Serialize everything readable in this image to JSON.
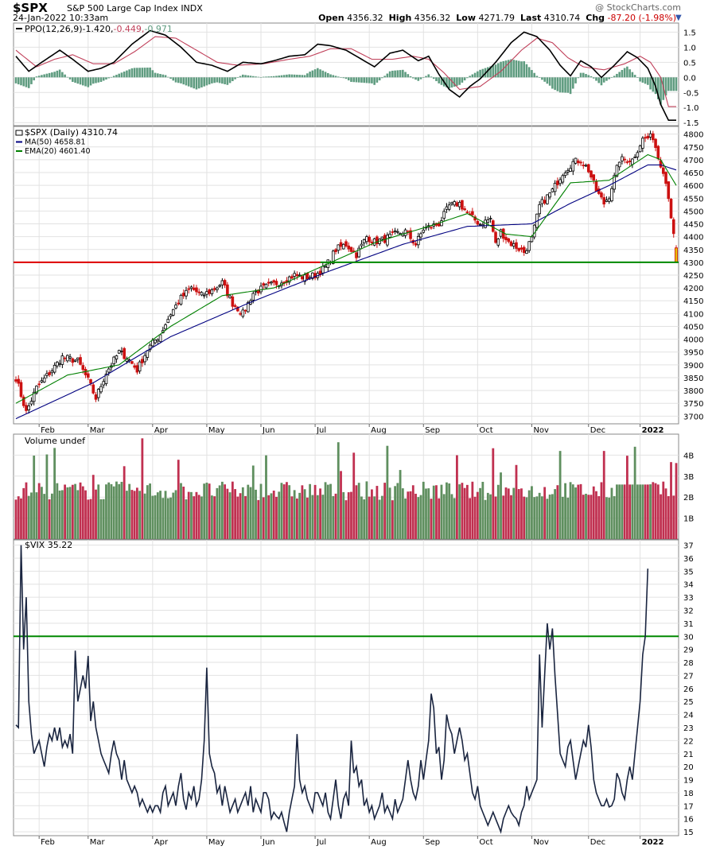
{
  "header": {
    "ticker": "$SPX",
    "name": "S&P 500 Large Cap Index",
    "exchange": "INDX",
    "datetime": "24-Jan-2022 10:33am",
    "brand": "@ StockCharts.com",
    "open_label": "Open",
    "open": "4356.32",
    "high_label": "High",
    "high": "4356.32",
    "low_label": "Low",
    "low": "4271.79",
    "last_label": "Last",
    "last": "4310.74",
    "chg_label": "Chg",
    "chg": "-87.20 (-1.98%)"
  },
  "chart_data": [
    {
      "type": "line",
      "panel": "ppo",
      "legend": {
        "name": "PPO(12,26,9)",
        "v1": "-1.420",
        "v2": "-0.449",
        "v3": "-0.971"
      },
      "ylim": [
        -1.6,
        1.8
      ],
      "yticks": [
        "1.5",
        "1.0",
        "0.5",
        "0.0",
        "-0.5",
        "-1.0",
        "-1.5"
      ],
      "ppo_anchors": [
        [
          0,
          0.7
        ],
        [
          5,
          0.2
        ],
        [
          10,
          0.5
        ],
        [
          17,
          0.9
        ],
        [
          22,
          0.6
        ],
        [
          28,
          0.2
        ],
        [
          33,
          0.3
        ],
        [
          38,
          0.5
        ],
        [
          45,
          1.1
        ],
        [
          52,
          1.55
        ],
        [
          58,
          1.4
        ],
        [
          64,
          1.0
        ],
        [
          70,
          0.5
        ],
        [
          76,
          0.4
        ],
        [
          82,
          0.2
        ],
        [
          88,
          0.5
        ],
        [
          95,
          0.45
        ],
        [
          100,
          0.55
        ],
        [
          106,
          0.7
        ],
        [
          112,
          0.75
        ],
        [
          117,
          1.1
        ],
        [
          122,
          1.05
        ],
        [
          128,
          0.9
        ],
        [
          134,
          0.6
        ],
        [
          139,
          0.35
        ],
        [
          145,
          0.8
        ],
        [
          150,
          0.9
        ],
        [
          156,
          0.55
        ],
        [
          160,
          0.7
        ],
        [
          164,
          0.1
        ],
        [
          168,
          -0.4
        ],
        [
          172,
          -0.65
        ],
        [
          176,
          -0.3
        ],
        [
          180,
          -0.05
        ],
        [
          186,
          0.5
        ],
        [
          192,
          1.15
        ],
        [
          197,
          1.5
        ],
        [
          202,
          1.35
        ],
        [
          207,
          0.9
        ],
        [
          211,
          0.4
        ],
        [
          215,
          0.05
        ],
        [
          219,
          0.55
        ],
        [
          223,
          0.35
        ],
        [
          227,
          0.0
        ],
        [
          232,
          0.4
        ],
        [
          237,
          0.85
        ],
        [
          241,
          0.65
        ],
        [
          245,
          0.3
        ],
        [
          248,
          -0.3
        ],
        [
          250,
          -0.9
        ],
        [
          253,
          -1.42
        ]
      ],
      "signal_anchors": [
        [
          0,
          0.9
        ],
        [
          8,
          0.35
        ],
        [
          15,
          0.6
        ],
        [
          22,
          0.75
        ],
        [
          30,
          0.45
        ],
        [
          38,
          0.45
        ],
        [
          46,
          0.85
        ],
        [
          54,
          1.35
        ],
        [
          62,
          1.3
        ],
        [
          70,
          0.9
        ],
        [
          78,
          0.5
        ],
        [
          86,
          0.4
        ],
        [
          96,
          0.45
        ],
        [
          106,
          0.6
        ],
        [
          114,
          0.7
        ],
        [
          122,
          0.95
        ],
        [
          130,
          0.95
        ],
        [
          138,
          0.6
        ],
        [
          146,
          0.6
        ],
        [
          154,
          0.7
        ],
        [
          160,
          0.6
        ],
        [
          166,
          0.15
        ],
        [
          172,
          -0.4
        ],
        [
          180,
          -0.3
        ],
        [
          188,
          0.2
        ],
        [
          196,
          0.9
        ],
        [
          202,
          1.3
        ],
        [
          208,
          1.15
        ],
        [
          214,
          0.65
        ],
        [
          220,
          0.35
        ],
        [
          228,
          0.25
        ],
        [
          236,
          0.45
        ],
        [
          242,
          0.7
        ],
        [
          246,
          0.5
        ],
        [
          250,
          0.0
        ],
        [
          253,
          -0.97
        ]
      ],
      "colors": {
        "ppo": "#000000",
        "signal": "#c0405a",
        "histogram": "#5f9c80"
      }
    },
    {
      "type": "candlestick",
      "panel": "price",
      "legend": [
        {
          "label": "$SPX (Daily) 4310.74",
          "color": "#000000"
        },
        {
          "label": "MA(50) 4658.81",
          "color": "#000080"
        },
        {
          "label": "EMA(20) 4601.40",
          "color": "#008000"
        }
      ],
      "ylim": [
        3670,
        4830
      ],
      "yticks": [
        "4800",
        "4750",
        "4700",
        "4650",
        "4600",
        "4550",
        "4500",
        "4450",
        "4400",
        "4350",
        "4300",
        "4250",
        "4200",
        "4150",
        "4100",
        "4050",
        "4000",
        "3950",
        "3900",
        "3850",
        "3800",
        "3750",
        "3700"
      ],
      "xticks": [
        "Feb",
        "Mar",
        "Apr",
        "May",
        "Jun",
        "Jul",
        "Aug",
        "Sep",
        "Oct",
        "Nov",
        "Dec",
        "2022"
      ],
      "close_anchors": [
        [
          0,
          3850
        ],
        [
          4,
          3715
        ],
        [
          8,
          3810
        ],
        [
          14,
          3880
        ],
        [
          18,
          3930
        ],
        [
          24,
          3915
        ],
        [
          28,
          3840
        ],
        [
          31,
          3770
        ],
        [
          35,
          3870
        ],
        [
          40,
          3950
        ],
        [
          43,
          3930
        ],
        [
          47,
          3880
        ],
        [
          51,
          3960
        ],
        [
          56,
          4020
        ],
        [
          60,
          4100
        ],
        [
          64,
          4160
        ],
        [
          68,
          4200
        ],
        [
          72,
          4170
        ],
        [
          76,
          4190
        ],
        [
          80,
          4220
        ],
        [
          84,
          4140
        ],
        [
          86,
          4120
        ],
        [
          88,
          4100
        ],
        [
          92,
          4180
        ],
        [
          96,
          4200
        ],
        [
          100,
          4215
        ],
        [
          104,
          4230
        ],
        [
          108,
          4250
        ],
        [
          112,
          4240
        ],
        [
          116,
          4250
        ],
        [
          120,
          4280
        ],
        [
          124,
          4350
        ],
        [
          128,
          4370
        ],
        [
          132,
          4330
        ],
        [
          136,
          4400
        ],
        [
          139,
          4380
        ],
        [
          143,
          4390
        ],
        [
          147,
          4410
        ],
        [
          151,
          4420
        ],
        [
          155,
          4370
        ],
        [
          158,
          4430
        ],
        [
          164,
          4450
        ],
        [
          168,
          4520
        ],
        [
          172,
          4530
        ],
        [
          176,
          4480
        ],
        [
          180,
          4450
        ],
        [
          184,
          4470
        ],
        [
          186,
          4370
        ],
        [
          188,
          4420
        ],
        [
          191,
          4380
        ],
        [
          194,
          4360
        ],
        [
          197,
          4340
        ],
        [
          200,
          4390
        ],
        [
          203,
          4520
        ],
        [
          208,
          4580
        ],
        [
          212,
          4650
        ],
        [
          216,
          4690
        ],
        [
          219,
          4700
        ],
        [
          222,
          4660
        ],
        [
          225,
          4580
        ],
        [
          228,
          4530
        ],
        [
          230,
          4560
        ],
        [
          234,
          4700
        ],
        [
          239,
          4700
        ],
        [
          243,
          4780
        ],
        [
          247,
          4790
        ],
        [
          249,
          4710
        ],
        [
          251,
          4660
        ],
        [
          253,
          4560
        ],
        [
          255,
          4400
        ],
        [
          256,
          4310
        ]
      ],
      "open_last": 4356.32,
      "ma50_anchors": [
        [
          0,
          3690
        ],
        [
          30,
          3830
        ],
        [
          60,
          4010
        ],
        [
          90,
          4140
        ],
        [
          120,
          4260
        ],
        [
          150,
          4370
        ],
        [
          175,
          4440
        ],
        [
          200,
          4450
        ],
        [
          215,
          4530
        ],
        [
          230,
          4600
        ],
        [
          245,
          4680
        ],
        [
          250,
          4680
        ],
        [
          256,
          4660
        ]
      ],
      "ema20_anchors": [
        [
          0,
          3750
        ],
        [
          20,
          3860
        ],
        [
          40,
          3900
        ],
        [
          60,
          4050
        ],
        [
          80,
          4170
        ],
        [
          100,
          4200
        ],
        [
          120,
          4290
        ],
        [
          140,
          4380
        ],
        [
          160,
          4440
        ],
        [
          175,
          4490
        ],
        [
          190,
          4410
        ],
        [
          200,
          4400
        ],
        [
          215,
          4610
        ],
        [
          230,
          4620
        ],
        [
          245,
          4720
        ],
        [
          250,
          4700
        ],
        [
          256,
          4600
        ]
      ],
      "support_level": 4300,
      "colors": {
        "up": "#000000",
        "down": "#cc1111",
        "support_left": "#dd0000",
        "support_right": "#008800"
      }
    },
    {
      "type": "bar",
      "panel": "volume",
      "legend": "Volume undef",
      "ylim": [
        0,
        5
      ],
      "yticks": [
        "4B",
        "3B",
        "2B",
        "1B"
      ],
      "colors": {
        "up": "#5f8f5f",
        "down": "#c03050"
      }
    },
    {
      "type": "line",
      "panel": "vix",
      "legend": "$VIX 35.22",
      "ylim": [
        14.7,
        37.4
      ],
      "yticks": [
        "37",
        "36",
        "35",
        "34",
        "33",
        "32",
        "31",
        "30",
        "29",
        "28",
        "27",
        "26",
        "25",
        "24",
        "23",
        "22",
        "21",
        "20",
        "19",
        "18",
        "17",
        "16",
        "15"
      ],
      "xticks": [
        "Feb",
        "Mar",
        "Apr",
        "May",
        "Jun",
        "Jul",
        "Aug",
        "Sep",
        "Oct",
        "Nov",
        "Dec",
        "2022"
      ],
      "reference_level": 30,
      "values": [
        23.2,
        23.0,
        37.0,
        29.0,
        33.0,
        25.0,
        22.5,
        21.0,
        21.5,
        22.0,
        21.0,
        20.0,
        21.5,
        22.5,
        22.0,
        23.0,
        22.0,
        23.0,
        21.5,
        22.0,
        21.5,
        22.5,
        21.0,
        28.9,
        25.0,
        26.0,
        27.0,
        26.0,
        28.5,
        23.5,
        25.0,
        23.0,
        22.0,
        21.0,
        20.5,
        20.0,
        19.5,
        21.0,
        22.0,
        21.0,
        20.5,
        19.0,
        20.5,
        19.0,
        18.5,
        18.0,
        18.5,
        18.0,
        17.0,
        17.5,
        17.0,
        16.5,
        17.0,
        16.5,
        17.0,
        17.0,
        16.5,
        18.0,
        18.5,
        17.0,
        17.5,
        18.0,
        17.0,
        18.5,
        19.5,
        17.5,
        16.7,
        18.0,
        17.5,
        18.5,
        17.0,
        17.5,
        19.0,
        22.0,
        27.6,
        21.0,
        20.0,
        19.5,
        18.0,
        18.5,
        17.0,
        18.5,
        17.5,
        16.5,
        17.0,
        17.5,
        16.5,
        17.0,
        17.5,
        18.0,
        17.0,
        18.5,
        16.5,
        17.5,
        17.0,
        16.5,
        18.0,
        18.0,
        17.5,
        16.0,
        16.5,
        16.2,
        16.0,
        16.5,
        15.7,
        15.0,
        16.5,
        17.5,
        18.5,
        22.5,
        19.0,
        18.0,
        18.5,
        17.5,
        17.0,
        16.5,
        18.0,
        18.0,
        17.5,
        17.0,
        18.0,
        16.5,
        16.0,
        17.5,
        19.0,
        17.0,
        16.0,
        17.5,
        18.0,
        17.0,
        22.0,
        19.5,
        20.0,
        18.5,
        19.0,
        17.0,
        17.5,
        16.5,
        17.0,
        16.0,
        16.5,
        17.0,
        18.0,
        16.5,
        17.0,
        16.5,
        16.0,
        17.5,
        16.5,
        17.0,
        17.5,
        19.0,
        20.5,
        19.0,
        18.0,
        17.5,
        18.5,
        20.5,
        19.0,
        20.5,
        22.0,
        25.6,
        24.5,
        21.0,
        21.5,
        19.0,
        20.5,
        24.0,
        23.0,
        22.5,
        21.0,
        22.0,
        23.0,
        22.0,
        20.5,
        21.0,
        19.5,
        18.0,
        17.5,
        18.5,
        17.0,
        16.5,
        16.0,
        15.5,
        16.0,
        16.5,
        16.0,
        15.5,
        15.0,
        16.0,
        16.5,
        17.0,
        16.5,
        16.2,
        16.0,
        15.5,
        16.5,
        17.0,
        18.5,
        17.5,
        18.0,
        18.5,
        19.0,
        28.6,
        23.0,
        27.0,
        31.0,
        29.0,
        30.6,
        27.0,
        24.0,
        21.0,
        20.5,
        20.0,
        21.5,
        22.0,
        20.5,
        19.0,
        20.0,
        21.0,
        22.0,
        21.5,
        23.2,
        21.5,
        19.0,
        18.0,
        17.5,
        17.0,
        17.0,
        17.5,
        16.9,
        17.0,
        17.5,
        19.5,
        19.0,
        18.0,
        17.5,
        19.0,
        20.0,
        19.0,
        21.0,
        23.0,
        25.0,
        28.6,
        30.0,
        35.2
      ]
    }
  ]
}
